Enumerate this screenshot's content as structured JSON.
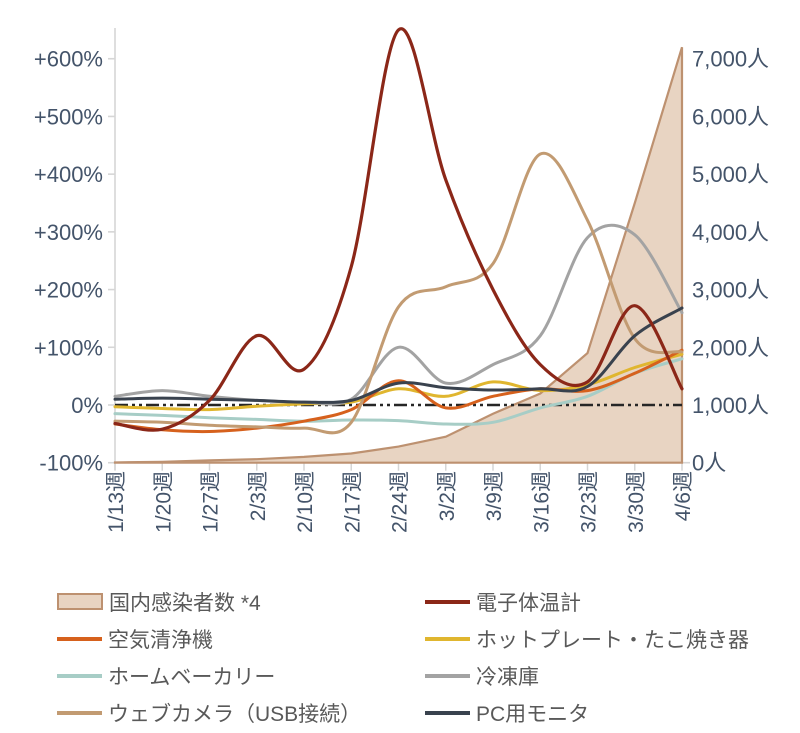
{
  "chart_data": {
    "type": "line",
    "title": "",
    "grid": "off",
    "legend_position": "bottom",
    "categories": [
      "1/13週",
      "1/20週",
      "1/27週",
      "2/3週",
      "2/10週",
      "2/17週",
      "2/24週",
      "3/2週",
      "3/9週",
      "3/16週",
      "3/23週",
      "3/30週",
      "4/6週"
    ],
    "left_axis": {
      "unit": "%",
      "min": -100,
      "max": 600,
      "tick_labels": [
        "+600%",
        "+500%",
        "+400%",
        "+300%",
        "+200%",
        "+100%",
        "0%",
        "-100%"
      ],
      "tick_values": [
        600,
        500,
        400,
        300,
        200,
        100,
        0,
        -100
      ]
    },
    "right_axis": {
      "unit": "人",
      "min": 0,
      "max": 7000,
      "tick_labels": [
        "7,000人",
        "6,000人",
        "5,000人",
        "4,000人",
        "3,000人",
        "2,000人",
        "1,000人",
        "0人"
      ],
      "tick_values": [
        7000,
        6000,
        5000,
        4000,
        3000,
        2000,
        1000,
        0
      ]
    },
    "zero_line": {
      "value": 0,
      "style": "dash-dot",
      "color": "#262626"
    },
    "series": [
      {
        "name": "国内感染者数 *4",
        "kind": "area",
        "axis": "right",
        "color": "#bd9170",
        "fill": "#e8d4c2",
        "values": [
          5,
          15,
          40,
          60,
          100,
          160,
          280,
          450,
          850,
          1200,
          1900,
          4500,
          7200
        ]
      },
      {
        "name": "電子体温計",
        "kind": "line",
        "axis": "left",
        "color": "#8b2718",
        "values": [
          -32,
          -42,
          8,
          120,
          62,
          240,
          650,
          390,
          200,
          70,
          40,
          172,
          28
        ]
      },
      {
        "name": "空気清浄機",
        "kind": "line",
        "axis": "left",
        "color": "#d6611d",
        "values": [
          -33,
          -43,
          -46,
          -40,
          -28,
          -8,
          42,
          -5,
          15,
          28,
          25,
          55,
          95
        ]
      },
      {
        "name": "ホットプレート・たこ焼き器",
        "kind": "line",
        "axis": "left",
        "color": "#e0b62f",
        "values": [
          -3,
          -6,
          -8,
          -2,
          2,
          5,
          28,
          15,
          40,
          25,
          35,
          65,
          88
        ]
      },
      {
        "name": "ホームベーカリー",
        "kind": "line",
        "axis": "left",
        "color": "#a7cdc6",
        "values": [
          -15,
          -18,
          -22,
          -25,
          -28,
          -26,
          -27,
          -33,
          -30,
          -5,
          15,
          55,
          80
        ]
      },
      {
        "name": "冷凍庫",
        "kind": "line",
        "axis": "left",
        "color": "#a3a3a3",
        "values": [
          15,
          25,
          15,
          8,
          5,
          10,
          100,
          38,
          70,
          120,
          290,
          295,
          160
        ]
      },
      {
        "name": "ウェブカメラ（USB接続）",
        "kind": "line",
        "axis": "left",
        "color": "#c29b72",
        "values": [
          -28,
          -30,
          -35,
          -38,
          -40,
          -30,
          170,
          205,
          245,
          435,
          320,
          115,
          92
        ]
      },
      {
        "name": "PC用モニタ",
        "kind": "line",
        "axis": "left",
        "color": "#39424e",
        "values": [
          10,
          12,
          10,
          8,
          5,
          8,
          38,
          30,
          26,
          28,
          32,
          120,
          168
        ]
      }
    ],
    "style": {
      "axis_text_color": "#44546a",
      "legend_text_color": "#595959",
      "axis_line_color": "#d6d6d6"
    }
  }
}
